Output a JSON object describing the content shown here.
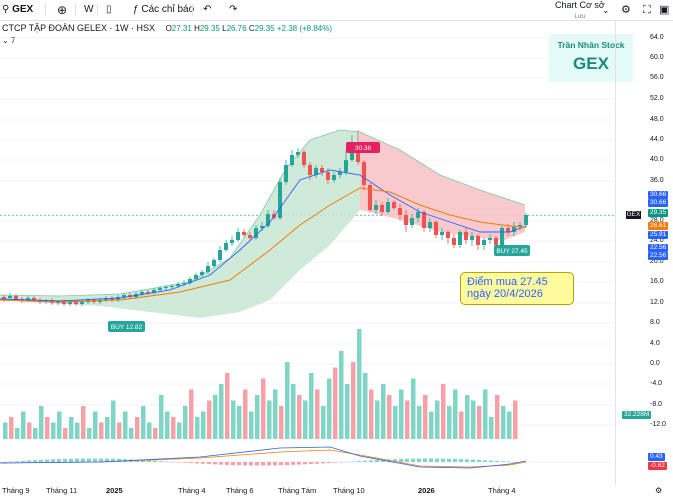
{
  "toolbar": {
    "symbol": "GEX",
    "interval": "W",
    "indicators_label": "Các chỉ báo",
    "chart_type_label": "Chart Cơ sở",
    "save_label": "Lưu"
  },
  "legend": {
    "title": "CTCP TẬP ĐOÀN GELEX · 1W · HSX",
    "o_label": "O",
    "o_value": "27.31",
    "h_label": "H",
    "h_value": "29.35",
    "l_label": "L",
    "l_value": "26.76",
    "c_label": "C",
    "c_value": "29.35",
    "change": "+2.38 (+8.84%)",
    "collapsed_count": "7"
  },
  "watermark": {
    "author": "Trần Nhân Stock",
    "symbol": "GEX"
  },
  "annotations": {
    "buy_top": "BUY 12.82",
    "buy_recent": "BUY 27.45",
    "sell": "30.38",
    "note_line1": "Điểm mua 27.45",
    "note_line2": "ngày 20/4/2026"
  },
  "price_axis": {
    "ticks": [
      "64.0",
      "60.0",
      "56.0",
      "52.0",
      "48.0",
      "44.0",
      "40.0",
      "36.0",
      "28.0",
      "24.0",
      "20.0",
      "16.0",
      "12.0",
      "8.0",
      "4.0",
      "0.0",
      "-4.0",
      "-8.0",
      "-12.0"
    ],
    "tags": [
      {
        "text": "30.66",
        "color": "#2962ff"
      },
      {
        "text": "30.66",
        "color": "#2962ff"
      },
      {
        "text": "29.35",
        "color": "#089981"
      },
      {
        "text": "26.61",
        "color": "#f57c00"
      },
      {
        "text": "25.91",
        "color": "#2962ff"
      },
      {
        "text": "22.56",
        "color": "#2962ff"
      },
      {
        "text": "22.56",
        "color": "#2962ff"
      },
      {
        "text": "32.228M",
        "color": "#26a69a"
      },
      {
        "text": "0.43",
        "color": "#2962ff"
      },
      {
        "text": "-0.62",
        "color": "#f23645"
      }
    ],
    "symbol_tag": "GEX"
  },
  "time_axis": [
    "Tháng 9",
    "Tháng 11",
    "2025",
    "Tháng 4",
    "Tháng 6",
    "Tháng Tám",
    "Tháng 10",
    "2026",
    "Tháng 4"
  ],
  "colors": {
    "up": "#26a69a",
    "down": "#ef5350",
    "band_up": "#c8e6d4",
    "band_down": "#f7c4c8",
    "ma_fast": "#2962ff",
    "ma_slow": "#f57c00"
  }
}
